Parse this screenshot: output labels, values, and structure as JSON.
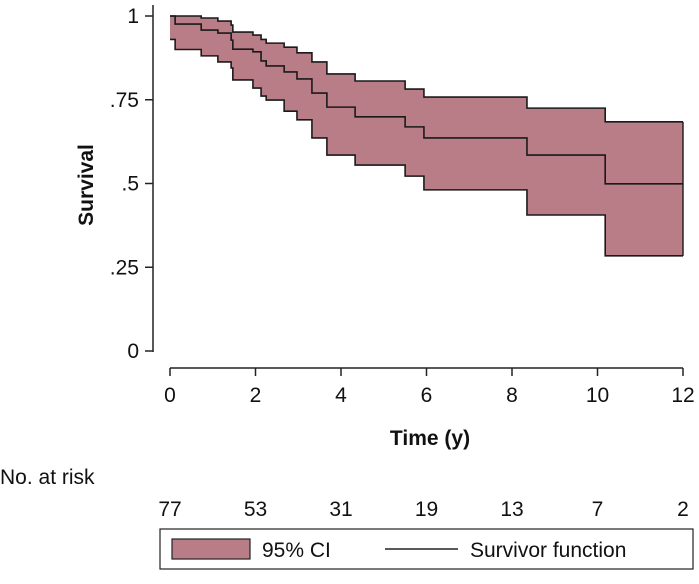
{
  "chart_data": {
    "type": "line",
    "subtype": "kaplan-meier step",
    "xlabel": "Time (y)",
    "ylabel": "Survival",
    "xlim": [
      0,
      12
    ],
    "ylim": [
      0,
      1
    ],
    "x_ticks": [
      0,
      2,
      4,
      6,
      8,
      10,
      12
    ],
    "x_tick_labels": [
      "0",
      "2",
      "4",
      "6",
      "8",
      "10",
      "12"
    ],
    "y_ticks": [
      0,
      0.25,
      0.5,
      0.75,
      1
    ],
    "y_tick_labels": [
      "0",
      ".25",
      ".5",
      ".75",
      "1"
    ],
    "grid": false,
    "times": [
      0,
      0.12,
      0.73,
      1.12,
      1.43,
      1.47,
      1.94,
      2.13,
      2.25,
      2.67,
      2.97,
      3.32,
      3.67,
      4.33,
      5.5,
      5.94,
      8.35,
      10.18
    ],
    "end_time": 12,
    "series": [
      {
        "name": "Survivor function",
        "values": [
          1.0,
          0.976,
          0.958,
          0.949,
          0.928,
          0.901,
          0.893,
          0.866,
          0.851,
          0.833,
          0.812,
          0.77,
          0.728,
          0.699,
          0.669,
          0.636,
          0.585,
          0.499
        ]
      },
      {
        "name": "95% CI upper",
        "values": [
          1.0,
          1.0,
          0.994,
          0.985,
          0.973,
          0.952,
          0.943,
          0.93,
          0.919,
          0.907,
          0.89,
          0.863,
          0.827,
          0.806,
          0.782,
          0.758,
          0.725,
          0.684
        ]
      },
      {
        "name": "95% CI lower",
        "values": [
          0.93,
          0.9,
          0.881,
          0.863,
          0.845,
          0.809,
          0.785,
          0.761,
          0.749,
          0.716,
          0.69,
          0.636,
          0.585,
          0.555,
          0.522,
          0.481,
          0.406,
          0.284
        ]
      }
    ],
    "legend": {
      "placement": "bottom",
      "items": [
        "95% CI",
        "Survivor function"
      ]
    },
    "risk_table": {
      "label": "No. at risk",
      "times": [
        0,
        2,
        4,
        6,
        8,
        10,
        12
      ],
      "counts": [
        "77",
        "53",
        "31",
        "19",
        "13",
        "7",
        "2"
      ]
    },
    "colors": {
      "ci_fill": "#b97d87",
      "line": "#1a1a1a"
    }
  }
}
